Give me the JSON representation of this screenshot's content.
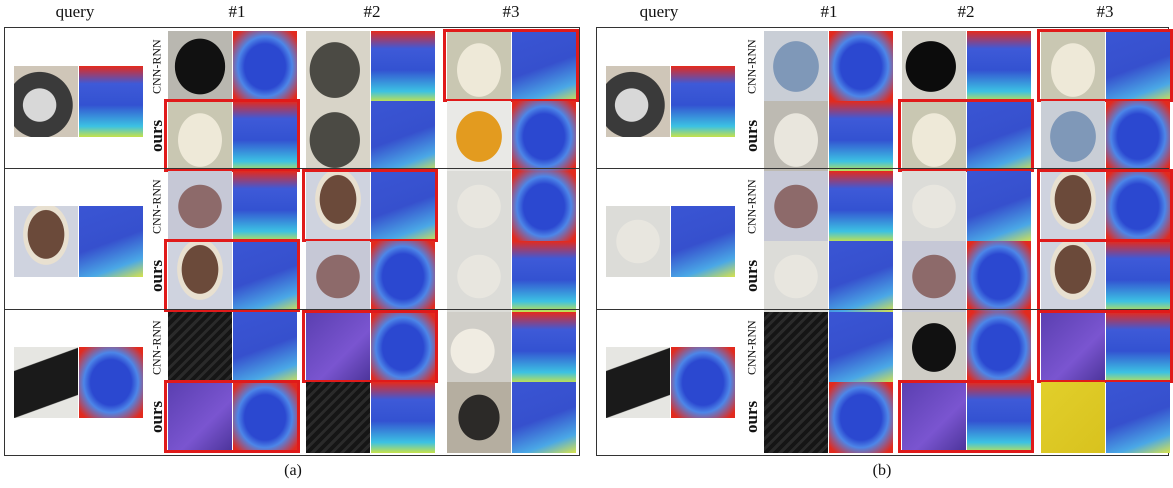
{
  "headers": {
    "query": "query",
    "c1": "#1",
    "c2": "#2",
    "c3": "#3"
  },
  "row_labels": {
    "cnn": "CNN-RNN",
    "ours": "ours"
  },
  "captions": {
    "a": "(a)",
    "b": "(b)"
  },
  "colors": {
    "highlight": "#e01a1a",
    "depth_near": "#2a40c8",
    "depth_far": "#e82020"
  },
  "panels": [
    {
      "caption": "(a)",
      "groups": [
        {
          "query": "kettle",
          "cnn": [
            "black-mug",
            "grey-mug",
            "white-jug"
          ],
          "ours": [
            "white-jug",
            "grey-mug",
            "yellow-cup"
          ],
          "cnn_hl": 3,
          "ours_hl": 1
        },
        {
          "query": "mushroom",
          "cnn": [
            "onion",
            "mushroom",
            "garlic"
          ],
          "ours": [
            "mushroom",
            "onion",
            "garlic"
          ],
          "cnn_hl": 2,
          "ours_hl": 1
        },
        {
          "query": "black-box",
          "cnn": [
            "keyboard",
            "purple-box",
            "white-shoe"
          ],
          "ours": [
            "purple-box",
            "keyboard",
            "stapler"
          ],
          "cnn_hl": 2,
          "ours_hl": 1
        }
      ]
    },
    {
      "caption": "(b)",
      "groups": [
        {
          "query": "kettle",
          "cnn": [
            "blue-box",
            "black-bowl",
            "white-jug"
          ],
          "ours": [
            "white-bowl",
            "white-jug",
            "blue-box"
          ],
          "cnn_hl": 3,
          "ours_hl": 2
        },
        {
          "query": "garlic",
          "cnn": [
            "onion",
            "garlic",
            "mushroom"
          ],
          "ours": [
            "garlic",
            "onion",
            "mushroom"
          ],
          "cnn_hl": 3,
          "ours_hl": 3
        },
        {
          "query": "black-box",
          "cnn": [
            "keyboard",
            "black-mouse",
            "purple-box"
          ],
          "ours": [
            "keyboard",
            "purple-box",
            "yellow-board"
          ],
          "cnn_hl": 3,
          "ours_hl": 2
        }
      ]
    }
  ]
}
